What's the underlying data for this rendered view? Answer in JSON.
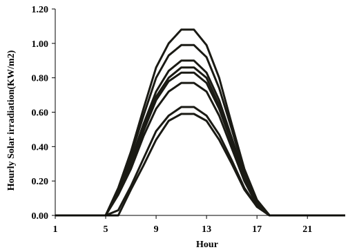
{
  "chart_data": {
    "type": "line",
    "xlabel": "Hour",
    "ylabel": "Hourly Solar irradiation(KW/m2)",
    "xlim": [
      1,
      24
    ],
    "ylim": [
      0,
      1.2
    ],
    "x_ticks": [
      1,
      5,
      9,
      13,
      17,
      21
    ],
    "y_ticks": [
      0,
      0.2,
      0.4,
      0.6,
      0.8,
      1.0,
      1.2
    ],
    "y_tick_labels": [
      "0.00",
      "0.20",
      "0.40",
      "0.60",
      "0.80",
      "1.00",
      "1.20"
    ],
    "grid": false,
    "x": [
      1,
      2,
      3,
      4,
      5,
      6,
      7,
      8,
      9,
      10,
      11,
      12,
      13,
      14,
      15,
      16,
      17,
      18,
      19,
      20,
      21,
      22,
      23,
      24
    ],
    "series": [
      {
        "values": [
          0,
          0,
          0,
          0,
          0,
          0.16,
          0.37,
          0.62,
          0.86,
          1.0,
          1.08,
          1.08,
          0.99,
          0.8,
          0.53,
          0.27,
          0.09,
          0,
          0,
          0,
          0,
          0,
          0,
          0
        ]
      },
      {
        "values": [
          0,
          0,
          0,
          0,
          0,
          0.15,
          0.35,
          0.58,
          0.8,
          0.93,
          0.99,
          0.99,
          0.92,
          0.74,
          0.5,
          0.25,
          0.08,
          0,
          0,
          0,
          0,
          0,
          0,
          0
        ]
      },
      {
        "values": [
          0,
          0,
          0,
          0,
          0,
          0.14,
          0.32,
          0.53,
          0.72,
          0.84,
          0.9,
          0.9,
          0.83,
          0.67,
          0.45,
          0.23,
          0.07,
          0,
          0,
          0,
          0,
          0,
          0,
          0
        ]
      },
      {
        "values": [
          0,
          0,
          0,
          0,
          0,
          0.13,
          0.3,
          0.51,
          0.69,
          0.8,
          0.86,
          0.86,
          0.8,
          0.64,
          0.43,
          0.22,
          0.07,
          0,
          0,
          0,
          0,
          0,
          0,
          0
        ]
      },
      {
        "values": [
          0,
          0,
          0,
          0,
          0,
          0.13,
          0.29,
          0.49,
          0.67,
          0.78,
          0.83,
          0.83,
          0.77,
          0.62,
          0.42,
          0.21,
          0.07,
          0,
          0,
          0,
          0,
          0,
          0,
          0
        ]
      },
      {
        "values": [
          0,
          0,
          0,
          0,
          0,
          0.12,
          0.27,
          0.46,
          0.62,
          0.72,
          0.77,
          0.77,
          0.72,
          0.58,
          0.39,
          0.2,
          0.06,
          0,
          0,
          0,
          0,
          0,
          0,
          0
        ]
      },
      {
        "values": [
          0,
          0,
          0,
          0,
          0,
          0.03,
          0.17,
          0.33,
          0.49,
          0.58,
          0.63,
          0.63,
          0.58,
          0.47,
          0.32,
          0.16,
          0.05,
          0,
          0,
          0,
          0,
          0,
          0,
          0
        ]
      },
      {
        "values": [
          0,
          0,
          0,
          0,
          0,
          0,
          0.15,
          0.29,
          0.44,
          0.55,
          0.59,
          0.59,
          0.55,
          0.44,
          0.3,
          0.15,
          0.05,
          0,
          0,
          0,
          0,
          0,
          0,
          0
        ]
      }
    ]
  }
}
